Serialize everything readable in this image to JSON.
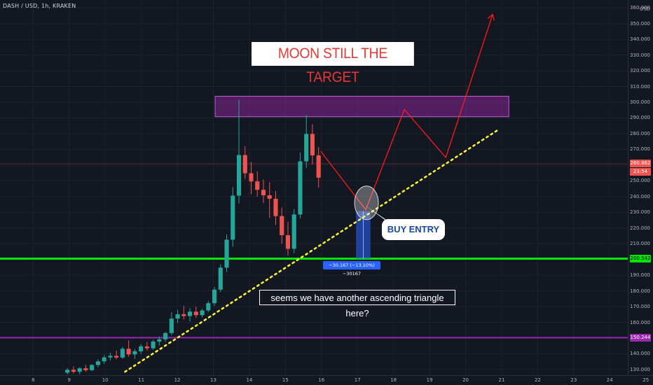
{
  "symbol": {
    "title": "DASH / USD, 1h, KRAKEN"
  },
  "price_axis": {
    "unit": "USD",
    "ticks": [
      "360.000",
      "350.000",
      "340.000",
      "330.000",
      "320.000",
      "310.000",
      "300.000",
      "290.000",
      "280.000",
      "270.000",
      "260.000",
      "250.000",
      "240.000",
      "230.000",
      "220.000",
      "210.000",
      "200.000",
      "190.000",
      "180.000",
      "170.000",
      "160.000",
      "150.000",
      "140.000",
      "130.000"
    ],
    "tick_values": [
      360,
      350,
      340,
      330,
      320,
      310,
      300,
      290,
      280,
      270,
      260,
      250,
      240,
      230,
      220,
      210,
      200,
      190,
      180,
      170,
      160,
      150,
      140,
      130
    ],
    "range": [
      126.4,
      365.0
    ]
  },
  "time_axis": {
    "ticks": [
      "8",
      "9",
      "10",
      "11",
      "12",
      "13",
      "14",
      "15",
      "16",
      "17",
      "18",
      "19",
      "20",
      "21",
      "22",
      "23",
      "24",
      "25"
    ],
    "tick_days": [
      8,
      9,
      10,
      11,
      12,
      13,
      14,
      15,
      16,
      17,
      18,
      19,
      20,
      21,
      22,
      23,
      24,
      25
    ],
    "range": [
      7.08,
      25.2
    ]
  },
  "price_labels": {
    "current_price": "260.862",
    "countdown": "23:54",
    "support_level": "200.542",
    "lower_level": "150.244"
  },
  "annotations": {
    "title_box": "MOON STILL THE TARGET",
    "buy_entry": "BUY ENTRY",
    "note": "seems we have another ascending triangle here?",
    "measure": "−30.167 (−13.10%) −30167"
  },
  "colors": {
    "background": "#131722",
    "up_candle": "#26a69a",
    "down_candle": "#ef5350",
    "support_line": "#00e600",
    "lower_line": "#9c27b0",
    "trendline": "#ffff33",
    "projection": "#ff1a1a",
    "resistance_zone": "#9c27b0",
    "measure": "#2962ff"
  },
  "chart_data": {
    "type": "candlestick",
    "horizontal_lines": [
      200.542,
      150.244
    ],
    "current_price_line": 260.862,
    "resistance_zone": {
      "from_day": 13.05,
      "to_day": 21.2,
      "low": 290.8,
      "high": 303.8
    },
    "trendline": {
      "points": [
        {
          "day": 10.55,
          "price": 128.6
        },
        {
          "day": 20.9,
          "price": 282.4
        }
      ],
      "style": "dotted"
    },
    "projection_path": [
      {
        "day": 15.98,
        "price": 268.8
      },
      {
        "day": 17.23,
        "price": 231.6
      },
      {
        "day": 18.3,
        "price": 295.4
      },
      {
        "day": 19.45,
        "price": 264.8
      },
      {
        "day": 20.75,
        "price": 355.8
      }
    ],
    "entry_zone": {
      "day": 17.25,
      "price": 236.0
    },
    "measure": {
      "day_from": 16.96,
      "day_to": 17.36,
      "price_from": 230.7,
      "price_to": 200.5
    },
    "candles": [
      {
        "t": 8.95,
        "o": 128.0,
        "h": 131.0,
        "l": 126.8,
        "c": 129.8
      },
      {
        "t": 9.12,
        "o": 129.8,
        "h": 132.0,
        "l": 127.5,
        "c": 128.6
      },
      {
        "t": 9.29,
        "o": 128.6,
        "h": 131.5,
        "l": 127.0,
        "c": 130.8
      },
      {
        "t": 9.46,
        "o": 130.8,
        "h": 133.0,
        "l": 128.5,
        "c": 129.6
      },
      {
        "t": 9.63,
        "o": 129.6,
        "h": 133.5,
        "l": 128.9,
        "c": 132.9
      },
      {
        "t": 9.8,
        "o": 132.9,
        "h": 136.5,
        "l": 131.5,
        "c": 135.2
      },
      {
        "t": 9.97,
        "o": 135.2,
        "h": 139.0,
        "l": 133.6,
        "c": 137.7
      },
      {
        "t": 10.14,
        "o": 137.7,
        "h": 140.8,
        "l": 135.8,
        "c": 138.7
      },
      {
        "t": 10.31,
        "o": 138.7,
        "h": 142.0,
        "l": 136.5,
        "c": 137.6
      },
      {
        "t": 10.48,
        "o": 137.6,
        "h": 144.5,
        "l": 136.8,
        "c": 143.2
      },
      {
        "t": 10.65,
        "o": 143.2,
        "h": 148.6,
        "l": 138.2,
        "c": 139.6
      },
      {
        "t": 10.82,
        "o": 139.6,
        "h": 143.0,
        "l": 136.7,
        "c": 141.6
      },
      {
        "t": 10.99,
        "o": 141.6,
        "h": 146.0,
        "l": 140.0,
        "c": 144.7
      },
      {
        "t": 11.16,
        "o": 144.7,
        "h": 147.5,
        "l": 142.0,
        "c": 143.5
      },
      {
        "t": 11.33,
        "o": 143.5,
        "h": 149.0,
        "l": 142.6,
        "c": 147.8
      },
      {
        "t": 11.5,
        "o": 147.8,
        "h": 151.0,
        "l": 145.2,
        "c": 149.2
      },
      {
        "t": 11.67,
        "o": 149.2,
        "h": 154.0,
        "l": 147.6,
        "c": 153.2
      },
      {
        "t": 11.84,
        "o": 153.2,
        "h": 166.5,
        "l": 152.0,
        "c": 162.4
      },
      {
        "t": 12.01,
        "o": 162.4,
        "h": 168.0,
        "l": 159.5,
        "c": 165.2
      },
      {
        "t": 12.18,
        "o": 165.2,
        "h": 170.5,
        "l": 161.8,
        "c": 164.0
      },
      {
        "t": 12.35,
        "o": 164.0,
        "h": 169.0,
        "l": 160.5,
        "c": 166.8
      },
      {
        "t": 12.52,
        "o": 166.8,
        "h": 170.0,
        "l": 162.8,
        "c": 164.6
      },
      {
        "t": 12.69,
        "o": 164.6,
        "h": 168.5,
        "l": 163.2,
        "c": 167.6
      },
      {
        "t": 12.86,
        "o": 167.6,
        "h": 173.5,
        "l": 166.4,
        "c": 172.2
      },
      {
        "t": 13.03,
        "o": 172.2,
        "h": 182.5,
        "l": 170.5,
        "c": 180.8
      },
      {
        "t": 13.2,
        "o": 180.8,
        "h": 197.0,
        "l": 179.2,
        "c": 194.8
      },
      {
        "t": 13.37,
        "o": 194.8,
        "h": 216.0,
        "l": 192.0,
        "c": 212.6
      },
      {
        "t": 13.54,
        "o": 212.6,
        "h": 246.0,
        "l": 208.0,
        "c": 240.6
      },
      {
        "t": 13.71,
        "o": 240.6,
        "h": 301.5,
        "l": 235.6,
        "c": 266.4
      },
      {
        "t": 13.88,
        "o": 266.4,
        "h": 272.0,
        "l": 251.2,
        "c": 254.8
      },
      {
        "t": 14.05,
        "o": 254.8,
        "h": 262.0,
        "l": 241.5,
        "c": 249.6
      },
      {
        "t": 14.22,
        "o": 249.6,
        "h": 256.0,
        "l": 240.0,
        "c": 244.3
      },
      {
        "t": 14.39,
        "o": 244.3,
        "h": 250.8,
        "l": 236.0,
        "c": 240.8
      },
      {
        "t": 14.56,
        "o": 240.8,
        "h": 249.0,
        "l": 226.4,
        "c": 238.6
      },
      {
        "t": 14.73,
        "o": 238.6,
        "h": 243.5,
        "l": 222.0,
        "c": 227.6
      },
      {
        "t": 14.9,
        "o": 227.6,
        "h": 233.0,
        "l": 210.0,
        "c": 215.4
      },
      {
        "t": 15.07,
        "o": 215.4,
        "h": 224.0,
        "l": 202.5,
        "c": 206.8
      },
      {
        "t": 15.24,
        "o": 206.8,
        "h": 232.0,
        "l": 204.0,
        "c": 228.6
      },
      {
        "t": 15.41,
        "o": 228.6,
        "h": 268.0,
        "l": 226.0,
        "c": 262.4
      },
      {
        "t": 15.58,
        "o": 262.4,
        "h": 292.0,
        "l": 258.0,
        "c": 279.8
      },
      {
        "t": 15.75,
        "o": 279.8,
        "h": 286.0,
        "l": 260.5,
        "c": 266.2
      },
      {
        "t": 15.92,
        "o": 266.2,
        "h": 271.5,
        "l": 245.8,
        "c": 252.0
      }
    ]
  }
}
